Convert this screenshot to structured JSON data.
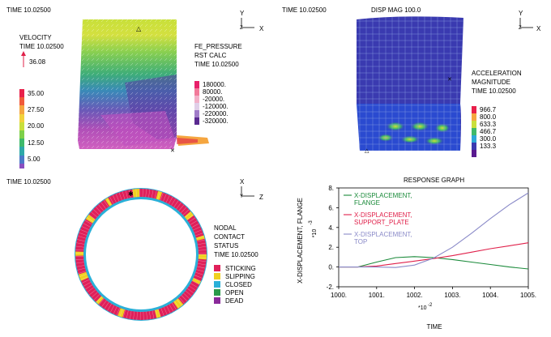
{
  "panels": {
    "velocity": {
      "time": "TIME 10.02500",
      "title": "VELOCITY",
      "subtime": "TIME 10.02500",
      "arrow_value": "36.08",
      "fe_title": "FE_PRESSURE",
      "fe_sub": "RST CALC",
      "fe_time": "TIME 10.02500",
      "velocity_legend": [
        {
          "label": "35.00",
          "color": "#e8204a"
        },
        {
          "label": "",
          "color": "#f05a3a"
        },
        {
          "label": "27.50",
          "color": "#f5a640"
        },
        {
          "label": "",
          "color": "#f2d23c"
        },
        {
          "label": "20.00",
          "color": "#c9df3c"
        },
        {
          "label": "",
          "color": "#7ed04a"
        },
        {
          "label": "12.50",
          "color": "#3fb96a"
        },
        {
          "label": "",
          "color": "#2ea8a8"
        },
        {
          "label": "5.00",
          "color": "#4b79c8"
        },
        {
          "label": "",
          "color": "#8a4fc0"
        }
      ],
      "pressure_legend": [
        {
          "label": "180000.",
          "color": "#e8206a"
        },
        {
          "label": "80000.",
          "color": "#f27a9a"
        },
        {
          "label": "-20000.",
          "color": "#f2b0c8"
        },
        {
          "label": "-120000.",
          "color": "#e0cfe8"
        },
        {
          "label": "-220000.",
          "color": "#a07cc8"
        },
        {
          "label": "-320000.",
          "color": "#5a2a90"
        }
      ],
      "axes": {
        "y": "Y",
        "x": "X"
      }
    },
    "displacement": {
      "time": "TIME 10.02500",
      "title": "DISP MAG 100.0",
      "accel_title": "ACCELERATION",
      "accel_sub": "MAGNITUDE",
      "accel_time": "TIME 10.02500",
      "accel_legend": [
        {
          "label": "966.7",
          "color": "#e8204a"
        },
        {
          "label": "800.0",
          "color": "#f5a640"
        },
        {
          "label": "633.3",
          "color": "#c9df3c"
        },
        {
          "label": "466.7",
          "color": "#3fb96a"
        },
        {
          "label": "300.0",
          "color": "#2ea8d8"
        },
        {
          "label": "133.3",
          "color": "#3a3ab0"
        },
        {
          "label": "",
          "color": "#5a1a90"
        }
      ],
      "axes": {
        "y": "Y",
        "x": "X"
      }
    },
    "contact": {
      "time": "TIME 10.02500",
      "title1": "NODAL",
      "title2": "CONTACT",
      "title3": "STATUS",
      "status_time": "TIME 10.02500",
      "legend": [
        {
          "label": "STICKING",
          "color": "#e0205a"
        },
        {
          "label": "SLIPPING",
          "color": "#f0d020"
        },
        {
          "label": "CLOSED",
          "color": "#2ab0d8"
        },
        {
          "label": "OPEN",
          "color": "#2a9a4a"
        },
        {
          "label": "DEAD",
          "color": "#8a2a9a"
        }
      ],
      "axes": {
        "y": "X",
        "x": "Z"
      }
    },
    "response": {
      "title": "RESPONSE GRAPH",
      "ylabel": "X-DISPLACEMENT, FLANGE",
      "yexp": "*10",
      "yexp_pow": "-3",
      "xlabel": "TIME",
      "xexp": "*10",
      "xexp_pow": "-2",
      "yticks": [
        "8.",
        "6.",
        "4.",
        "2.",
        "0.",
        "-2."
      ],
      "xticks": [
        "1000.",
        "1001.",
        "1002.",
        "1003.",
        "1004.",
        "1005."
      ],
      "legend": [
        {
          "line1": "X-DISPLACEMENT,",
          "line2": "FLANGE",
          "color": "#1a8a3a"
        },
        {
          "line1": "X-DISPLACEMENT,",
          "line2": "SUPPORT_PLATE",
          "color": "#e0204a"
        },
        {
          "line1": "X-DISPLACEMENT,",
          "line2": "TOP",
          "color": "#8a8ac8"
        }
      ]
    }
  },
  "chart_data": {
    "type": "line",
    "title": "RESPONSE GRAPH",
    "xlabel": "TIME",
    "ylabel": "X-DISPLACEMENT, FLANGE",
    "xlim": [
      1000,
      1005
    ],
    "ylim": [
      -2,
      8
    ],
    "series": [
      {
        "name": "X-DISPLACEMENT, FLANGE",
        "x": [
          1000,
          1000.5,
          1001,
          1001.5,
          1002,
          1002.5,
          1003,
          1003.5,
          1004,
          1004.5,
          1005
        ],
        "y": [
          0,
          0,
          0.5,
          0.95,
          1.05,
          0.95,
          0.75,
          0.5,
          0.25,
          0,
          -0.2
        ]
      },
      {
        "name": "X-DISPLACEMENT, SUPPORT_PLATE",
        "x": [
          1000,
          1000.5,
          1001,
          1001.5,
          1002,
          1002.5,
          1003,
          1003.5,
          1004,
          1004.5,
          1005
        ],
        "y": [
          0,
          0,
          0.1,
          0.35,
          0.6,
          0.85,
          1.15,
          1.5,
          1.85,
          2.15,
          2.45
        ]
      },
      {
        "name": "X-DISPLACEMENT, TOP",
        "x": [
          1000,
          1000.5,
          1001,
          1001.5,
          1002,
          1002.5,
          1003,
          1003.5,
          1004,
          1004.5,
          1005
        ],
        "y": [
          0,
          0,
          0,
          -0.05,
          0.2,
          0.9,
          2.0,
          3.4,
          4.9,
          6.3,
          7.5
        ]
      }
    ]
  }
}
